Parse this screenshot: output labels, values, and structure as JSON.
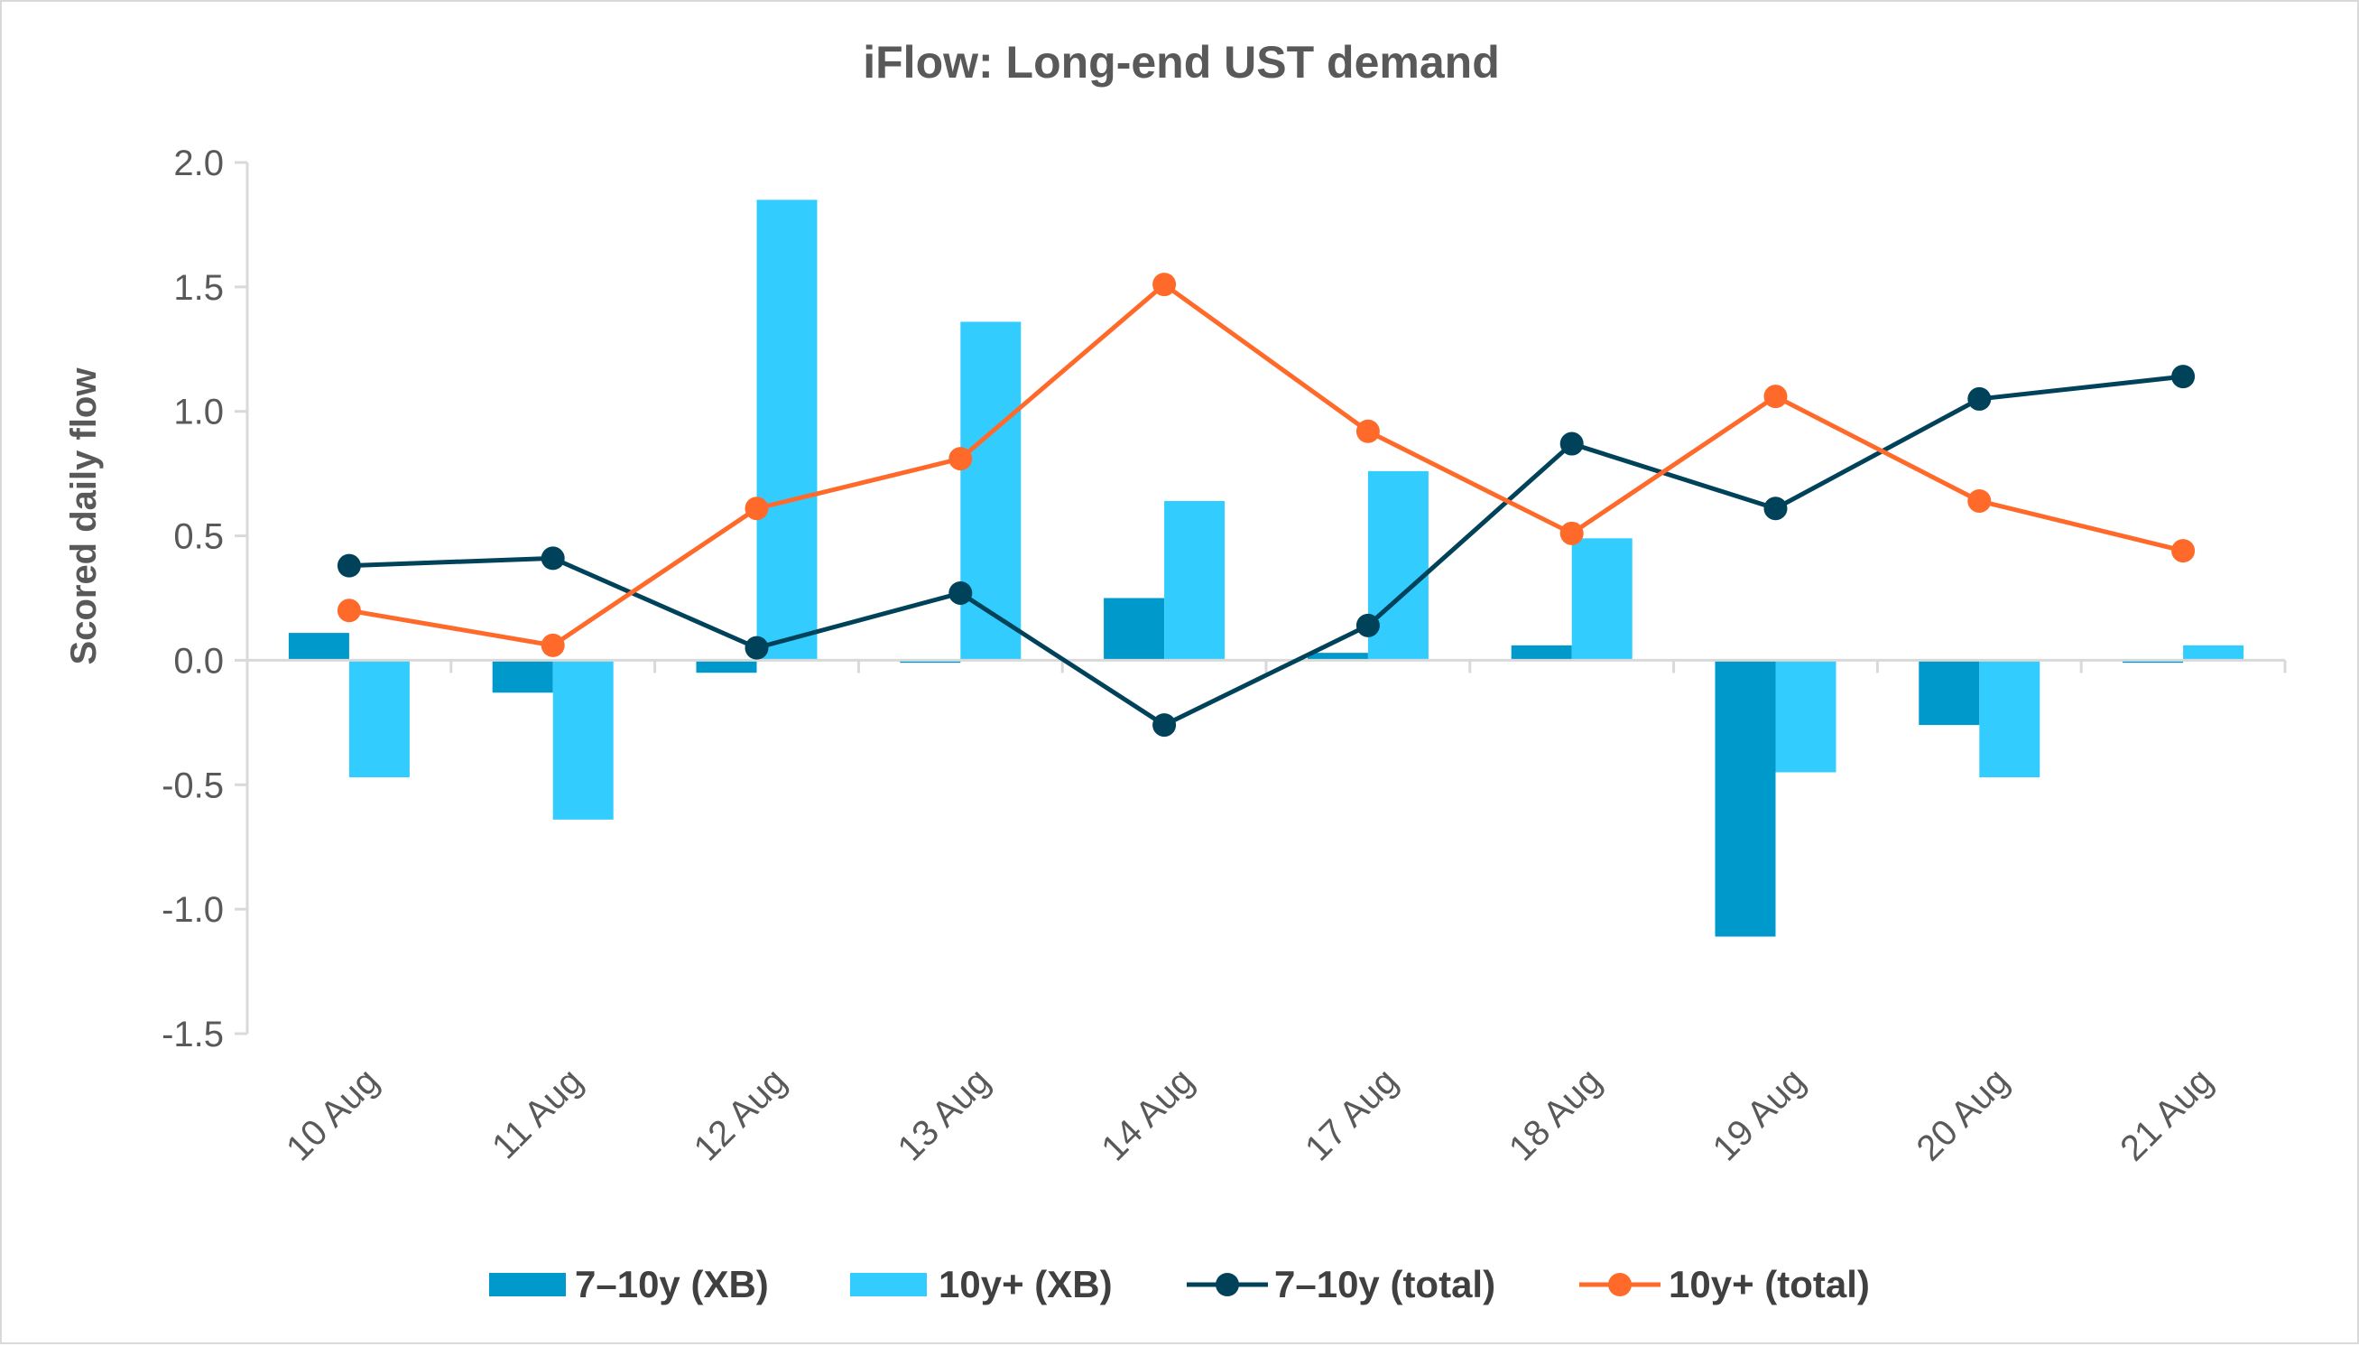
{
  "chart_data": {
    "type": "bar",
    "title": "iFlow: Long-end UST demand",
    "ylabel": "Scored daily flow",
    "xlabel": "",
    "categories": [
      "10 Aug",
      "11 Aug",
      "12 Aug",
      "13 Aug",
      "14 Aug",
      "17 Aug",
      "18 Aug",
      "19 Aug",
      "20 Aug",
      "21 Aug"
    ],
    "ylim": [
      -1.5,
      2.0
    ],
    "yticks": [
      "2.0",
      "1.5",
      "1.0",
      "0.5",
      "0.0",
      "-0.5",
      "-1.0",
      "-1.5"
    ],
    "ytick_values": [
      2.0,
      1.5,
      1.0,
      0.5,
      0.0,
      -0.5,
      -1.0,
      -1.5
    ],
    "grid": false,
    "legend_position": "bottom",
    "series": [
      {
        "name": "7–10y (XB)",
        "kind": "bar",
        "color": "#0099cc",
        "values": [
          0.11,
          -0.13,
          -0.05,
          -0.01,
          0.25,
          0.03,
          0.06,
          -1.11,
          -0.26,
          -0.01
        ]
      },
      {
        "name": "10y+ (XB)",
        "kind": "bar",
        "color": "#33ccff",
        "values": [
          -0.47,
          -0.64,
          1.85,
          1.36,
          0.64,
          0.76,
          0.49,
          -0.45,
          -0.47,
          0.06
        ]
      },
      {
        "name": "7–10y (total)",
        "kind": "line",
        "color": "#004259",
        "values": [
          0.38,
          0.41,
          0.05,
          0.27,
          -0.26,
          0.14,
          0.87,
          0.61,
          1.05,
          1.14
        ]
      },
      {
        "name": "10y+ (total)",
        "kind": "line",
        "color": "#ff6a2a",
        "values": [
          0.2,
          0.06,
          0.61,
          0.81,
          1.51,
          0.92,
          0.51,
          1.06,
          0.64,
          0.44
        ]
      }
    ]
  }
}
